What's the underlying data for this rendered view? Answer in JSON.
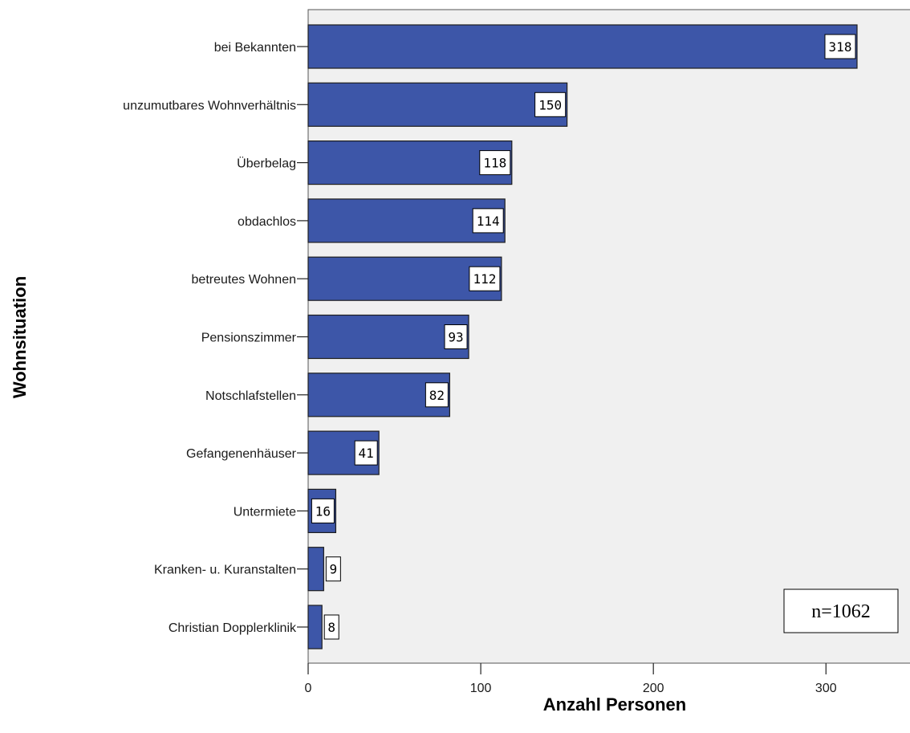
{
  "chart_data": {
    "type": "bar",
    "orientation": "horizontal",
    "categories": [
      "bei Bekannten",
      "unzumutbares Wohnverhältnis",
      "Überbelag",
      "obdachlos",
      "betreutes Wohnen",
      "Pensionszimmer",
      "Notschlafstellen",
      "Gefangenenhäuser",
      "Untermiete",
      "Kranken- u. Kuranstalten",
      "Christian Dopplerklinik"
    ],
    "values": [
      318,
      150,
      118,
      114,
      112,
      93,
      82,
      41,
      16,
      9,
      8
    ],
    "data_labels": [
      "318",
      "150",
      "118",
      "114",
      "112",
      "93",
      "82",
      "41",
      "16",
      "9",
      "8"
    ],
    "xlabel": "Anzahl Personen",
    "ylabel": "Wohnsituation",
    "xlim": [
      0,
      350
    ],
    "x_ticks": [
      0,
      100,
      200,
      300
    ],
    "x_tick_labels": [
      "0",
      "100",
      "200",
      "300"
    ],
    "annotation": "n=1062",
    "grid": false,
    "colors": {
      "bar_fill": "#3d56a8",
      "bar_stroke": "#1e1e1e",
      "plot_background": "#f0f0f0",
      "label_box_fill": "#ffffff"
    }
  }
}
